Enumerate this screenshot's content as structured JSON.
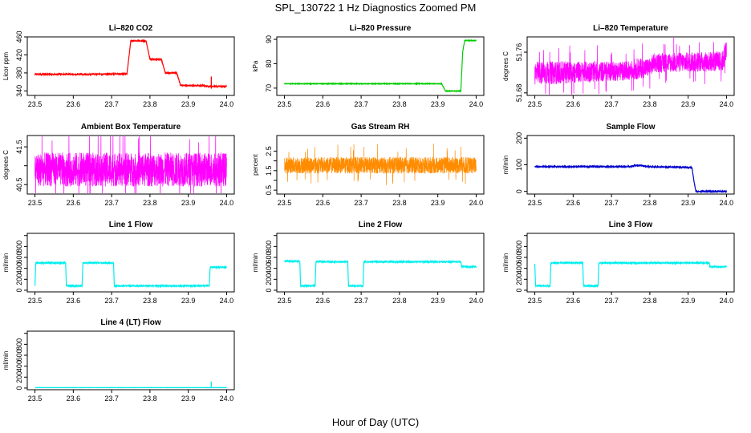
{
  "figure": {
    "title": "SPL_130722  1 Hz Diagnostics Zoomed PM",
    "xlabel": "Hour of Day (UTC)"
  },
  "chart_data": [
    {
      "type": "line",
      "title": "Li–820 CO2",
      "xlabel": "",
      "ylabel": "Licor ppm",
      "color": "#ff0000",
      "xlim": [
        23.48,
        24.02
      ],
      "ylim": [
        330,
        460
      ],
      "xticks": [
        "23.5",
        "23.6",
        "23.7",
        "23.8",
        "23.9",
        "24.0"
      ],
      "yticks": [
        340,
        380,
        420,
        460
      ],
      "ytick_labels": [
        "340",
        "380",
        "420",
        "460"
      ],
      "style": "steps",
      "noise": 1.0,
      "series": [
        {
          "x": [
            23.5,
            23.63,
            23.66,
            23.74,
            23.75,
            23.79,
            23.8,
            23.83,
            23.84,
            23.87,
            23.88,
            23.94,
            23.95,
            24.0
          ],
          "y": [
            377,
            377,
            377,
            378,
            451,
            451,
            410,
            410,
            380,
            380,
            352,
            352,
            350,
            350
          ]
        }
      ],
      "spikes": [
        {
          "x": 23.96,
          "y0": 345,
          "y1": 372
        }
      ]
    },
    {
      "type": "line",
      "title": "Li–820 Pressure",
      "xlabel": "",
      "ylabel": "kPa",
      "color": "#00cc00",
      "xlim": [
        23.48,
        24.02
      ],
      "ylim": [
        67,
        91
      ],
      "xticks": [
        "23.5",
        "23.6",
        "23.7",
        "23.8",
        "23.9",
        "24.0"
      ],
      "yticks": [
        70,
        80,
        90
      ],
      "ytick_labels": [
        "70",
        "80",
        "90"
      ],
      "style": "steps",
      "noise": 0.08,
      "series": [
        {
          "x": [
            23.5,
            23.91,
            23.92,
            23.96,
            23.965,
            23.97,
            24.0
          ],
          "y": [
            71.8,
            71.8,
            68.8,
            68.8,
            85.0,
            89.5,
            89.5
          ]
        }
      ]
    },
    {
      "type": "line",
      "title": "Li–820 Temperature",
      "xlabel": "",
      "ylabel": "degrees C",
      "color": "#ff00ff",
      "xlim": [
        23.48,
        24.02
      ],
      "ylim": [
        51.675,
        51.79
      ],
      "xticks": [
        "23.5",
        "23.6",
        "23.7",
        "23.8",
        "23.9",
        "24.0"
      ],
      "yticks": [
        51.68,
        51.76
      ],
      "ytick_labels": [
        "51.68",
        "51.76"
      ],
      "style": "band",
      "series": [
        {
          "x": [
            23.5,
            23.75,
            23.76,
            23.8,
            23.81,
            23.99,
            24.0
          ],
          "low": [
            51.695,
            51.705,
            51.705,
            51.712,
            51.72,
            51.722,
            51.74
          ],
          "high": [
            51.742,
            51.742,
            51.748,
            51.748,
            51.758,
            51.762,
            51.79
          ]
        }
      ]
    },
    {
      "type": "line",
      "title": "Ambient Box Temperature",
      "xlabel": "",
      "ylabel": "degrees C",
      "color": "#ff00ff",
      "xlim": [
        23.48,
        24.02
      ],
      "ylim": [
        40.25,
        41.8
      ],
      "xticks": [
        "23.5",
        "23.6",
        "23.7",
        "23.8",
        "23.9",
        "24.0"
      ],
      "yticks": [
        40.5,
        41.0,
        41.5
      ],
      "ytick_labels": [
        "40.5",
        "41.5"
      ],
      "style": "band",
      "series": [
        {
          "x": [
            23.5,
            24.0
          ],
          "low": [
            40.45,
            40.45
          ],
          "high": [
            41.35,
            41.35
          ]
        }
      ]
    },
    {
      "type": "line",
      "title": "Gas Stream RH",
      "xlabel": "",
      "ylabel": "percent",
      "color": "#ff8c00",
      "xlim": [
        23.48,
        24.02
      ],
      "ylim": [
        0.3,
        3.3
      ],
      "xticks": [
        "23.5",
        "23.6",
        "23.7",
        "23.8",
        "23.9",
        "24.0"
      ],
      "yticks": [
        0.5,
        1.0,
        1.5,
        2.0,
        2.5
      ],
      "ytick_labels": [
        "0.5",
        "1.5",
        "2.5"
      ],
      "style": "band",
      "series": [
        {
          "x": [
            23.5,
            24.0
          ],
          "low": [
            1.35,
            1.35
          ],
          "high": [
            2.2,
            2.2
          ]
        }
      ]
    },
    {
      "type": "line",
      "title": "Sample Flow",
      "xlabel": "",
      "ylabel": "ml/min",
      "color": "#0000cc",
      "xlim": [
        23.48,
        24.02
      ],
      "ylim": [
        -10,
        210
      ],
      "xticks": [
        "23.5",
        "23.6",
        "23.7",
        "23.8",
        "23.9",
        "24.0"
      ],
      "yticks": [
        0,
        100,
        200
      ],
      "ytick_labels": [
        "0",
        "100",
        "200"
      ],
      "style": "steps",
      "noise": 1.5,
      "series": [
        {
          "x": [
            23.5,
            23.75,
            23.76,
            23.78,
            23.79,
            23.91,
            23.915,
            23.92,
            24.0
          ],
          "y": [
            93,
            93,
            97,
            97,
            93,
            90,
            40,
            0,
            0
          ]
        }
      ]
    },
    {
      "type": "line",
      "title": "Line 1 Flow",
      "xlabel": "",
      "ylabel": "ml/min",
      "color": "#00eeee",
      "xlim": [
        23.48,
        24.02
      ],
      "ylim": [
        -30,
        1040
      ],
      "xticks": [
        "23.5",
        "23.6",
        "23.7",
        "23.8",
        "23.9",
        "24.0"
      ],
      "yticks": [
        0,
        200,
        400,
        600,
        800,
        1000
      ],
      "ytick_labels": [
        "0",
        "200",
        "400",
        "600",
        "800"
      ],
      "style": "steps",
      "noise": 8,
      "series": [
        {
          "x": [
            23.5,
            23.502,
            23.58,
            23.582,
            23.623,
            23.625,
            23.705,
            23.707,
            23.955,
            23.957,
            24.0
          ],
          "y": [
            80,
            500,
            500,
            80,
            80,
            500,
            500,
            80,
            80,
            420,
            420
          ]
        }
      ]
    },
    {
      "type": "line",
      "title": "Line 2 Flow",
      "xlabel": "",
      "ylabel": "ml/min",
      "color": "#00eeee",
      "xlim": [
        23.48,
        24.02
      ],
      "ylim": [
        -30,
        1040
      ],
      "xticks": [
        "23.5",
        "23.6",
        "23.7",
        "23.8",
        "23.9",
        "24.0"
      ],
      "yticks": [
        0,
        200,
        400,
        600,
        800,
        1000
      ],
      "ytick_labels": [
        "0",
        "200",
        "400",
        "600",
        "800"
      ],
      "style": "steps",
      "noise": 8,
      "series": [
        {
          "x": [
            23.5,
            23.54,
            23.542,
            23.58,
            23.582,
            23.665,
            23.667,
            23.705,
            23.707,
            23.96,
            23.962,
            24.0
          ],
          "y": [
            530,
            530,
            80,
            80,
            520,
            520,
            80,
            80,
            520,
            520,
            430,
            430
          ]
        }
      ]
    },
    {
      "type": "line",
      "title": "Line 3 Flow",
      "xlabel": "",
      "ylabel": "ml/min",
      "color": "#00eeee",
      "xlim": [
        23.48,
        24.02
      ],
      "ylim": [
        -30,
        1040
      ],
      "xticks": [
        "23.5",
        "23.6",
        "23.7",
        "23.8",
        "23.9",
        "24.0"
      ],
      "yticks": [
        0,
        200,
        400,
        600,
        800,
        1000
      ],
      "ytick_labels": [
        "0",
        "200",
        "400",
        "600",
        "800"
      ],
      "style": "steps",
      "noise": 8,
      "series": [
        {
          "x": [
            23.5,
            23.502,
            23.54,
            23.542,
            23.625,
            23.627,
            23.665,
            23.667,
            23.955,
            23.957,
            24.0
          ],
          "y": [
            480,
            80,
            80,
            500,
            500,
            80,
            80,
            500,
            500,
            430,
            430
          ]
        }
      ]
    },
    {
      "type": "line",
      "title": "Line 4 (LT) Flow",
      "xlabel": "",
      "ylabel": "ml/min",
      "color": "#00eeee",
      "xlim": [
        23.48,
        24.02
      ],
      "ylim": [
        -30,
        1040
      ],
      "xticks": [
        "23.5",
        "23.6",
        "23.7",
        "23.8",
        "23.9",
        "24.0"
      ],
      "yticks": [
        0,
        200,
        400,
        600,
        800,
        1000
      ],
      "ytick_labels": [
        "0",
        "200",
        "400",
        "600",
        "800"
      ],
      "style": "steps",
      "noise": 1,
      "series": [
        {
          "x": [
            23.5,
            24.0
          ],
          "y": [
            8,
            8
          ]
        }
      ],
      "spikes": [
        {
          "x": 23.96,
          "y0": 8,
          "y1": 120
        }
      ]
    }
  ]
}
